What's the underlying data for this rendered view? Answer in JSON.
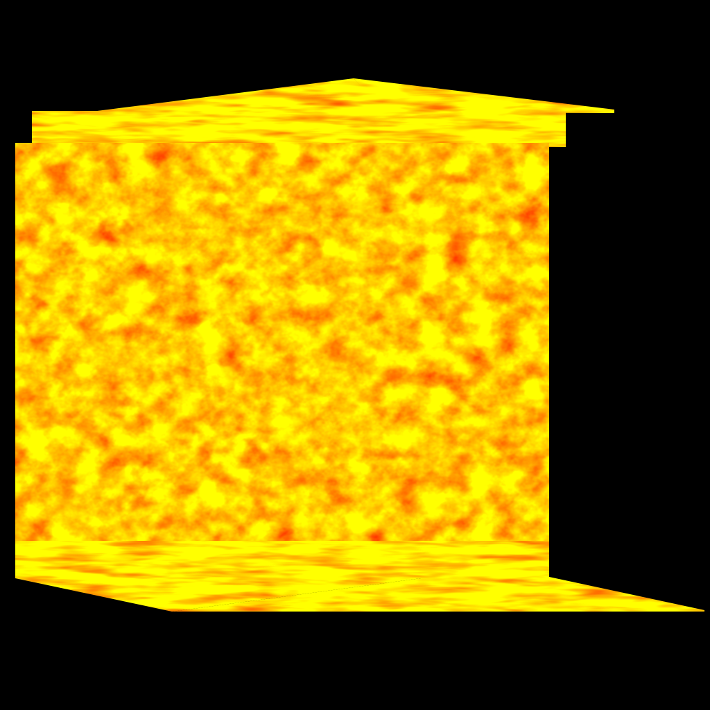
{
  "scene": {
    "description_visible_text": "",
    "background_color": "#000000",
    "texture_palette": [
      "#ff2a00",
      "#ff5a00",
      "#ff8c00",
      "#ffb400",
      "#ffe000"
    ],
    "object": "textured-cube-3d",
    "faces_visible": [
      "front",
      "top",
      "bottom"
    ]
  }
}
